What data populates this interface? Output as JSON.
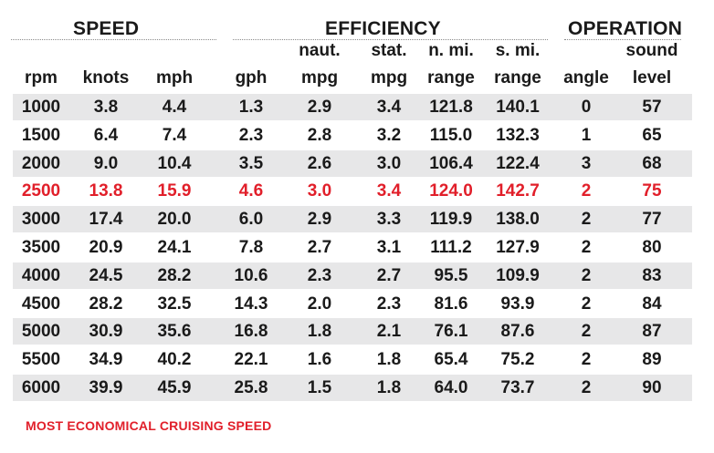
{
  "groups": {
    "speed": "SPEED",
    "efficiency": "EFFICIENCY",
    "operation": "OPERATION"
  },
  "columns": [
    {
      "key": "rpm",
      "top": "",
      "bottom": "rpm"
    },
    {
      "key": "knots",
      "top": "",
      "bottom": "knots"
    },
    {
      "key": "mph",
      "top": "",
      "bottom": "mph"
    },
    {
      "key": "gph",
      "top": "",
      "bottom": "gph"
    },
    {
      "key": "naut_mpg",
      "top": "naut.",
      "bottom": "mpg"
    },
    {
      "key": "stat_mpg",
      "top": "stat.",
      "bottom": "mpg"
    },
    {
      "key": "n_mi_range",
      "top": "n. mi.",
      "bottom": "range"
    },
    {
      "key": "s_mi_range",
      "top": "s. mi.",
      "bottom": "range"
    },
    {
      "key": "angle",
      "top": "",
      "bottom": "angle"
    },
    {
      "key": "sound_level",
      "top": "sound",
      "bottom": "level"
    }
  ],
  "rows": [
    [
      "1000",
      "3.8",
      "4.4",
      "1.3",
      "2.9",
      "3.4",
      "121.8",
      "140.1",
      "0",
      "57"
    ],
    [
      "1500",
      "6.4",
      "7.4",
      "2.3",
      "2.8",
      "3.2",
      "115.0",
      "132.3",
      "1",
      "65"
    ],
    [
      "2000",
      "9.0",
      "10.4",
      "3.5",
      "2.6",
      "3.0",
      "106.4",
      "122.4",
      "3",
      "68"
    ],
    [
      "2500",
      "13.8",
      "15.9",
      "4.6",
      "3.0",
      "3.4",
      "124.0",
      "142.7",
      "2",
      "75"
    ],
    [
      "3000",
      "17.4",
      "20.0",
      "6.0",
      "2.9",
      "3.3",
      "119.9",
      "138.0",
      "2",
      "77"
    ],
    [
      "3500",
      "20.9",
      "24.1",
      "7.8",
      "2.7",
      "3.1",
      "111.2",
      "127.9",
      "2",
      "80"
    ],
    [
      "4000",
      "24.5",
      "28.2",
      "10.6",
      "2.3",
      "2.7",
      "95.5",
      "109.9",
      "2",
      "83"
    ],
    [
      "4500",
      "28.2",
      "32.5",
      "14.3",
      "2.0",
      "2.3",
      "81.6",
      "93.9",
      "2",
      "84"
    ],
    [
      "5000",
      "30.9",
      "35.6",
      "16.8",
      "1.8",
      "2.1",
      "76.1",
      "87.6",
      "2",
      "87"
    ],
    [
      "5500",
      "34.9",
      "40.2",
      "22.1",
      "1.6",
      "1.8",
      "65.4",
      "75.2",
      "2",
      "89"
    ],
    [
      "6000",
      "39.9",
      "45.9",
      "25.8",
      "1.5",
      "1.8",
      "64.0",
      "73.7",
      "2",
      "90"
    ]
  ],
  "highlight_row_rpm": "2500",
  "footnote": "MOST ECONOMICAL CRUISING SPEED",
  "colors": {
    "highlight": "#e11f2a",
    "row_shade": "#e7e7e8",
    "text": "#1a1a1a"
  }
}
